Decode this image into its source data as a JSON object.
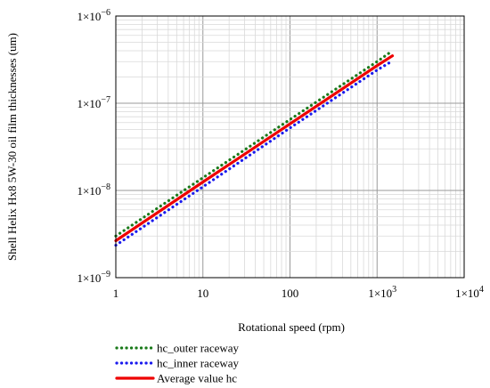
{
  "chart_data": {
    "type": "line",
    "xlabel": "Rotational speed (rpm)",
    "ylabel": "Shell Helix Hx8 5W-30 oil film thicknesses (um)",
    "x_scale": "log",
    "y_scale": "log",
    "xlim": [
      1,
      10000
    ],
    "ylim": [
      1e-09,
      1e-06
    ],
    "grid": true,
    "legend_position": "bottom-left",
    "x_ticks": [
      {
        "value": 1,
        "base": "1",
        "exp": ""
      },
      {
        "value": 10,
        "base": "10",
        "exp": ""
      },
      {
        "value": 100,
        "base": "100",
        "exp": ""
      },
      {
        "value": 1000,
        "base": "1×10",
        "exp": "3"
      },
      {
        "value": 10000,
        "base": "1×10",
        "exp": "4"
      }
    ],
    "y_ticks": [
      {
        "value": 1e-09,
        "base": "1×10",
        "exp": "−9"
      },
      {
        "value": 1e-08,
        "base": "1×10",
        "exp": "−8"
      },
      {
        "value": 1e-07,
        "base": "1×10",
        "exp": "−7"
      },
      {
        "value": 1e-06,
        "base": "1×10",
        "exp": "−6"
      }
    ],
    "series": [
      {
        "name": "hc_outer raceway",
        "color": "#1a7a1a",
        "style": "dotted",
        "x": [
          1,
          10,
          100,
          1000,
          1500
        ],
        "y": [
          3e-09,
          1.4e-08,
          6.5e-08,
          3e-07,
          4e-07
        ]
      },
      {
        "name": "hc_inner raceway",
        "color": "#1a1aee",
        "style": "dotted",
        "x": [
          1,
          10,
          100,
          1000,
          1500
        ],
        "y": [
          2.35e-09,
          1.1e-08,
          5.2e-08,
          2.4e-07,
          3.05e-07
        ]
      },
      {
        "name": "Average value hc",
        "color": "#ee0000",
        "style": "solid",
        "x": [
          1,
          10,
          100,
          1000,
          1500
        ],
        "y": [
          2.65e-09,
          1.25e-08,
          5.8e-08,
          2.7e-07,
          3.5e-07
        ]
      }
    ]
  }
}
